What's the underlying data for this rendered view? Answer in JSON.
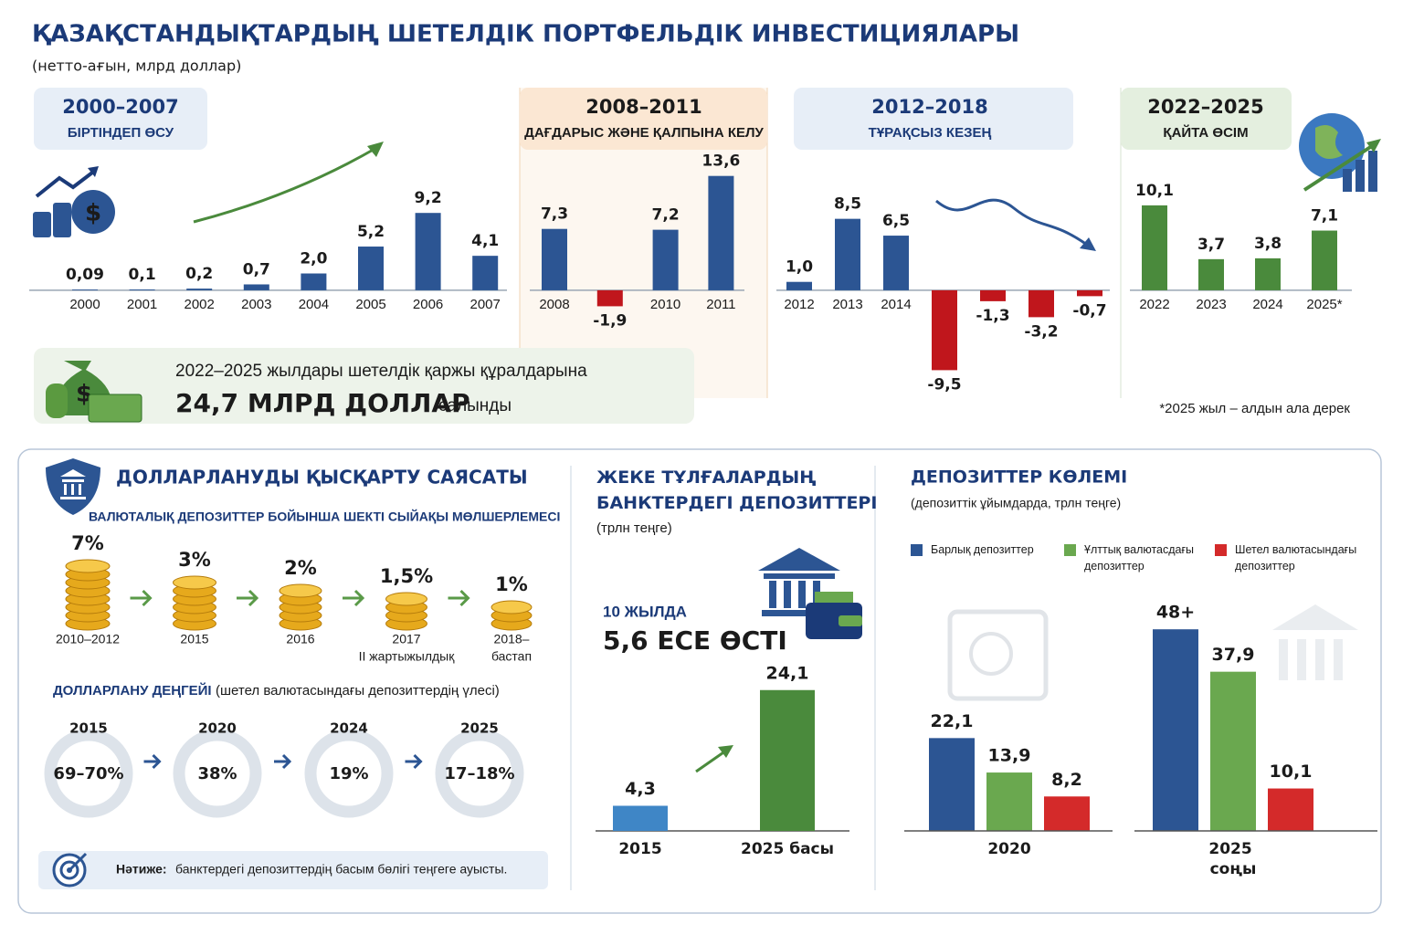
{
  "header": {
    "title": "ҚАЗАҚСТАНДЫҚТАРДЫҢ ШЕТЕЛДІК ПОРТФЕЛЬДІК ИНВЕСТИЦИЯЛАРЫ",
    "subtitle": "(нетто-ағын, млрд доллар)"
  },
  "chart_data": [
    {
      "type": "bar",
      "ylim": [
        -10,
        14
      ],
      "negative_color": "#c0161c",
      "periods": [
        {
          "title": "2000–2007",
          "subtitle": "БІРТІНДЕП ӨСУ",
          "color": "#2c5593",
          "categories": [
            "2000",
            "2001",
            "2002",
            "2003",
            "2004",
            "2005",
            "2006",
            "2007"
          ],
          "values": [
            0.09,
            0.1,
            0.2,
            0.7,
            2.0,
            5.2,
            9.2,
            4.1
          ],
          "value_labels": [
            "0,09",
            "0,1",
            "0,2",
            "0,7",
            "2,0",
            "5,2",
            "9,2",
            "4,1"
          ]
        },
        {
          "title": "2008–2011",
          "subtitle": "ДАҒДАРЫС ЖӘНЕ ҚАЛПЫНА КЕЛУ",
          "color": "#2c5593",
          "categories": [
            "2008",
            null,
            "2010",
            "2011"
          ],
          "values": [
            7.3,
            -1.9,
            7.2,
            13.6
          ],
          "value_labels": [
            "7,3",
            "-1,9",
            "7,2",
            "13,6"
          ]
        },
        {
          "title": "2012–2018",
          "subtitle": "ТҰРАҚСЫЗ КЕЗЕҢ",
          "color": "#2c5593",
          "categories": [
            "2012",
            "2013",
            "2014",
            null,
            null,
            null,
            null
          ],
          "values": [
            1.0,
            8.5,
            6.5,
            -9.5,
            -1.3,
            -3.2,
            -0.7
          ],
          "value_labels": [
            "1,0",
            "8,5",
            "6,5",
            "-9,5",
            "-1,3",
            "-3,2",
            "-0,7"
          ]
        },
        {
          "title": "2022–2025",
          "subtitle": "ҚАЙТА ӨСІМ",
          "color": "#4a8a3c",
          "categories": [
            "2022",
            "2023",
            "2024",
            "2025*"
          ],
          "values": [
            10.1,
            3.7,
            3.8,
            7.1
          ],
          "value_labels": [
            "10,1",
            "3,7",
            "3,8",
            "7,1"
          ]
        }
      ],
      "footnote": "*2025 жыл – алдын ала дерек"
    },
    {
      "type": "bar",
      "title": "ЖЕКЕ ТҰЛҒАЛАРДЫҢ БАНКТЕРДЕГІ ДЕПОЗИТТЕРІ",
      "subtitle": "(трлн теңге)",
      "annotation": "10 ЖЫЛДА",
      "highlight": "5,6 ЕСЕ ӨСТІ",
      "categories": [
        "2015",
        "2025 басы"
      ],
      "values": [
        4.3,
        24.1
      ],
      "value_labels": [
        "4,3",
        "24,1"
      ],
      "colors": [
        "#3f86c6",
        "#4a8a3c"
      ],
      "ylim": [
        0,
        25
      ]
    },
    {
      "type": "grouped-bar",
      "title": "ДЕПОЗИТТЕР КӨЛЕМІ",
      "subtitle": "(депозиттік ұйымдарда, трлн теңге)",
      "categories": [
        "2020",
        "2025 соңы"
      ],
      "ylim": [
        0,
        50
      ],
      "series": [
        {
          "name": "Барлық депозиттер",
          "color": "#2c5593",
          "values": [
            22.1,
            48
          ],
          "value_labels": [
            "22,1",
            "48+"
          ]
        },
        {
          "name": "Ұлттық валютасдағы депозиттер",
          "color": "#6aa84f",
          "values": [
            13.9,
            37.9
          ],
          "value_labels": [
            "13,9",
            "37,9"
          ]
        },
        {
          "name": "Шетел валютасындағы депозиттер",
          "color": "#d42a2a",
          "values": [
            8.2,
            10.1
          ],
          "value_labels": [
            "8,2",
            "10,1"
          ]
        }
      ]
    }
  ],
  "summary": {
    "line1": "2022–2025 жылдары шетелдік қаржы құралдарына",
    "amount": "24,7 МЛРД ДОЛЛАР",
    "line2": "салынды"
  },
  "policy": {
    "title": "ДОЛЛАРЛАНУДЫ ҚЫСҚАРТУ САЯСАТЫ",
    "subtitle": "ВАЛЮТАЛЫҚ ДЕПОЗИТТЕР БОЙЫНША ШЕКТІ СЫЙАҚЫ МӨЛШЕРЛЕМЕСІ",
    "steps": [
      {
        "rate": "7%",
        "period": "2010–2012"
      },
      {
        "rate": "3%",
        "period": "2015"
      },
      {
        "rate": "2%",
        "period": "2016"
      },
      {
        "rate": "1,5%",
        "period": "2017",
        "note": "II жартыжылдық"
      },
      {
        "rate": "1%",
        "period": "2018–",
        "note": "бастап"
      }
    ],
    "dollarization": {
      "title": "ДОЛЛАРЛАНУ ДЕҢГЕЙІ",
      "note": "(шетел валютасындағы депозиттердің үлесі)",
      "items": [
        {
          "year": "2015",
          "value": "69–70%",
          "color": "#d0201e"
        },
        {
          "year": "2020",
          "value": "38%",
          "color": "#e8891a"
        },
        {
          "year": "2024",
          "value": "19%",
          "color": "#3a8a2a"
        },
        {
          "year": "2025",
          "value": "17–18%",
          "color": "#3a8a2a"
        }
      ]
    },
    "result": {
      "label": "Нәтиже:",
      "text": "банктердегі депозиттердің басым бөлігі теңгеге ауысты."
    }
  }
}
